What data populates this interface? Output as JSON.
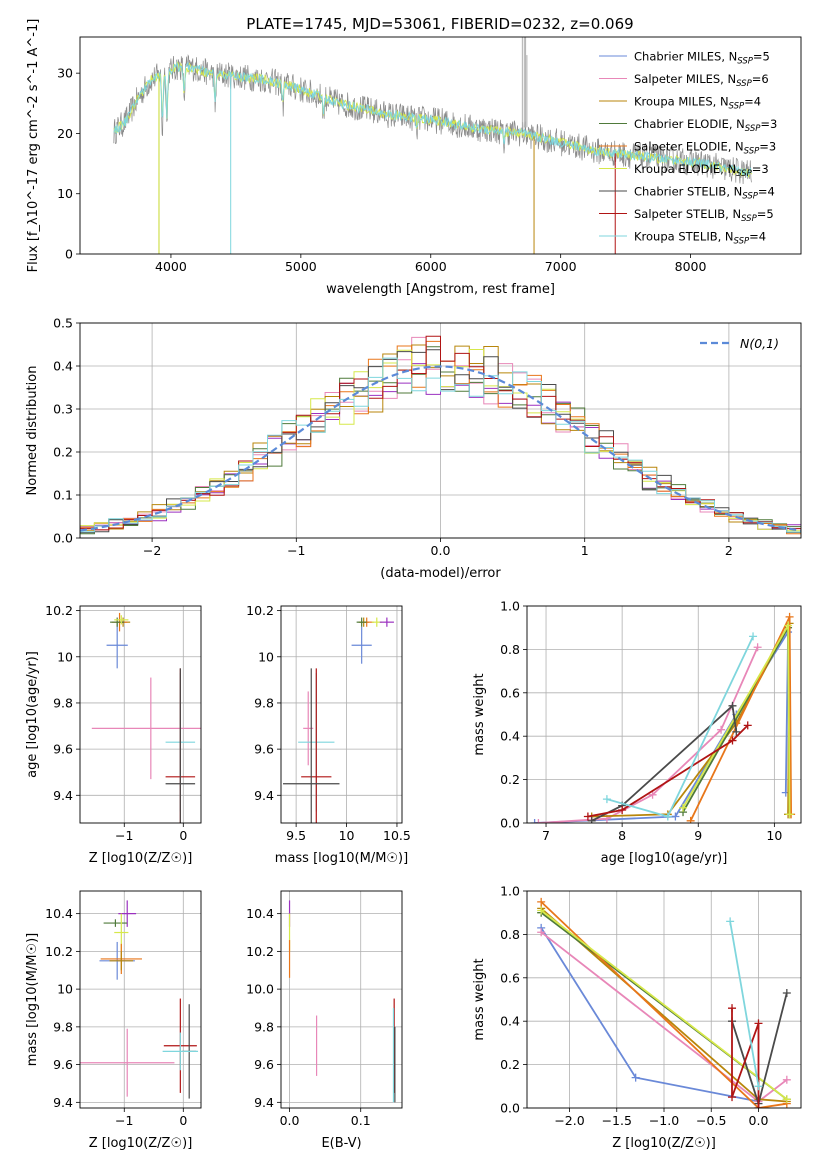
{
  "figure_title": "PLATE=1745, MJD=53061, FIBERID=0232, z=0.069",
  "colors": {
    "Chabrier MILES": "#6a89d8",
    "Salpeter MILES": "#e887b8",
    "Kroupa MILES": "#b8860b",
    "Chabrier ELODIE": "#4f7a3a",
    "Salpeter ELODIE": "#e8761a",
    "Kroupa ELODIE": "#d6e84a",
    "Chabrier STELIB": "#4a4a4a",
    "Salpeter STELIB": "#b01414",
    "Kroupa STELIB": "#7fd6dd",
    "Chabrier MILES hist": "#9b30c0"
  },
  "chart_data": [
    {
      "id": "spectrum",
      "type": "line",
      "xlabel": "wavelength [Angstrom, rest frame]",
      "ylabel": "Flux [f_λ10^-17 erg cm^-2 s^-1 A^-1]",
      "xlim": [
        3300,
        8850
      ],
      "ylim": [
        0,
        36
      ],
      "xticks": [
        4000,
        5000,
        6000,
        7000,
        8000
      ],
      "yticks": [
        0,
        10,
        20,
        30
      ],
      "grid": false,
      "legend_position": "top-right",
      "series": [
        {
          "name": "Chabrier MILES, N_SSP=5",
          "label": "Chabrier MILES, N",
          "nssp": "=5"
        },
        {
          "name": "Salpeter MILES, N_SSP=6",
          "label": "Salpeter MILES, N",
          "nssp": "=6"
        },
        {
          "name": "Kroupa MILES, N_SSP=4",
          "label": "Kroupa MILES, N",
          "nssp": "=4"
        },
        {
          "name": "Chabrier ELODIE, N_SSP=3",
          "label": "Chabrier ELODIE, N",
          "nssp": "=3"
        },
        {
          "name": "Salpeter ELODIE, N_SSP=3",
          "label": "Salpeter ELODIE, N",
          "nssp": "=3"
        },
        {
          "name": "Kroupa ELODIE, N_SSP=3",
          "label": "Kroupa ELODIE, N",
          "nssp": "=3"
        },
        {
          "name": "Chabrier STELIB, N_SSP=4",
          "label": "Chabrier STELIB, N",
          "nssp": "=4"
        },
        {
          "name": "Salpeter STELIB, N_SSP=5",
          "label": "Salpeter STELIB, N",
          "nssp": "=5"
        },
        {
          "name": "Kroupa STELIB, N_SSP=4",
          "label": "Kroupa STELIB, N",
          "nssp": "=4"
        }
      ],
      "continuum": [
        [
          3550,
          20
        ],
        [
          3650,
          22
        ],
        [
          3750,
          26
        ],
        [
          3850,
          29
        ],
        [
          3950,
          30
        ],
        [
          4050,
          31
        ],
        [
          4150,
          31
        ],
        [
          4300,
          30
        ],
        [
          4500,
          29.5
        ],
        [
          4700,
          29
        ],
        [
          4900,
          28
        ],
        [
          5100,
          26.5
        ],
        [
          5300,
          25
        ],
        [
          5500,
          24
        ],
        [
          5700,
          23
        ],
        [
          5900,
          22.5
        ],
        [
          6100,
          22
        ],
        [
          6300,
          21
        ],
        [
          6500,
          20.5
        ],
        [
          6700,
          20
        ],
        [
          6900,
          19
        ],
        [
          7100,
          18
        ],
        [
          7300,
          17
        ],
        [
          7500,
          16.5
        ],
        [
          7700,
          16
        ],
        [
          7900,
          15.5
        ],
        [
          8100,
          15
        ],
        [
          8300,
          14
        ],
        [
          8450,
          13.5
        ]
      ]
    },
    {
      "id": "residuals",
      "type": "histogram",
      "xlabel": "(data-model)/error",
      "ylabel": "Normed distribution",
      "xlim": [
        -2.5,
        2.5
      ],
      "ylim": [
        0,
        0.5
      ],
      "xticks": [
        -2,
        -1,
        0,
        1,
        2
      ],
      "yticks": [
        0.0,
        0.1,
        0.2,
        0.3,
        0.4,
        0.5
      ],
      "grid": true,
      "legend_position": "top-right",
      "reference_curve": "N(0,1)",
      "bins": 50
    },
    {
      "id": "z-age",
      "type": "errorbar",
      "xlabel": "Z [log10(Z/Z☉)]",
      "ylabel": "age [log10(age/yr)]",
      "xlim": [
        -1.75,
        0.3
      ],
      "ylim": [
        9.28,
        10.22
      ],
      "xticks": [
        -1,
        0
      ],
      "yticks": [
        9.4,
        9.6,
        9.8,
        10.0,
        10.2
      ],
      "grid": true,
      "points": [
        {
          "series": "Chabrier MILES",
          "x": -1.12,
          "xerr": 0.18,
          "y": 10.05,
          "yerr": 0.1
        },
        {
          "series": "Kroupa MILES",
          "x": -1.02,
          "xerr": 0.12,
          "y": 10.15,
          "yerr": 0.02
        },
        {
          "series": "Salpeter ELODIE",
          "x": -1.08,
          "xerr": 0.13,
          "y": 10.15,
          "yerr": 0.04
        },
        {
          "series": "Chabrier ELODIE",
          "x": -1.12,
          "xerr": 0.12,
          "y": 10.15,
          "yerr": 0.02
        },
        {
          "series": "Kroupa ELODIE",
          "x": -1.05,
          "xerr": 0.12,
          "y": 10.16,
          "yerr": 0.02
        },
        {
          "series": "Salpeter MILES",
          "x": -0.55,
          "xerr": 1.0,
          "y": 9.69,
          "yerr": 0.22
        },
        {
          "series": "Kroupa STELIB",
          "x": -0.05,
          "xerr": 0.25,
          "y": 9.63,
          "yerr": 0.3
        },
        {
          "series": "Salpeter STELIB",
          "x": -0.05,
          "xerr": 0.25,
          "y": 9.48,
          "yerr": 0.47
        },
        {
          "series": "Chabrier STELIB",
          "x": -0.05,
          "xerr": 0.25,
          "y": 9.45,
          "yerr": 0.5
        }
      ]
    },
    {
      "id": "mass-age",
      "type": "errorbar",
      "xlabel": "mass [log10(M/M☉)]",
      "ylabel": "",
      "xlim": [
        9.35,
        10.55
      ],
      "ylim": [
        9.28,
        10.22
      ],
      "xticks": [
        9.5,
        10.0,
        10.5
      ],
      "yticks": [
        9.4,
        9.6,
        9.8,
        10.0,
        10.2
      ],
      "grid": true,
      "points": [
        {
          "series": "Chabrier MILES",
          "x": 10.15,
          "xerr": 0.1,
          "y": 10.05,
          "yerr": 0.08
        },
        {
          "series": "Kroupa MILES",
          "x": 10.17,
          "xerr": 0.05,
          "y": 10.15,
          "yerr": 0.02
        },
        {
          "series": "Salpeter ELODIE",
          "x": 10.2,
          "xerr": 0.07,
          "y": 10.15,
          "yerr": 0.02
        },
        {
          "series": "Chabrier ELODIE",
          "x": 10.15,
          "xerr": 0.05,
          "y": 10.15,
          "yerr": 0.02
        },
        {
          "series": "Kroupa ELODIE",
          "x": 10.3,
          "xerr": 0.05,
          "y": 10.15,
          "yerr": 0.02
        },
        {
          "series": "Chabrier MILES hist",
          "x": 10.4,
          "xerr": 0.07,
          "y": 10.15,
          "yerr": 0.02
        },
        {
          "series": "Salpeter MILES",
          "x": 9.62,
          "xerr": 0.05,
          "y": 9.69,
          "yerr": 0.16
        },
        {
          "series": "Kroupa STELIB",
          "x": 9.7,
          "xerr": 0.18,
          "y": 9.63,
          "yerr": 0.3
        },
        {
          "series": "Salpeter STELIB",
          "x": 9.7,
          "xerr": 0.15,
          "y": 9.48,
          "yerr": 0.47
        },
        {
          "series": "Chabrier STELIB",
          "x": 9.65,
          "xerr": 0.28,
          "y": 9.45,
          "yerr": 0.5
        }
      ]
    },
    {
      "id": "age-weight",
      "type": "line",
      "xlabel": "age [log10(age/yr)]",
      "ylabel": "mass weight",
      "xlim": [
        6.75,
        10.35
      ],
      "ylim": [
        0,
        1
      ],
      "xticks": [
        7,
        8,
        9,
        10
      ],
      "yticks": [
        0.0,
        0.2,
        0.4,
        0.6,
        0.8,
        1.0
      ],
      "grid": true,
      "series": [
        {
          "series": "Chabrier MILES",
          "points": [
            [
              6.85,
              0.0
            ],
            [
              8.7,
              0.03
            ],
            [
              9.5,
              0.5
            ],
            [
              10.18,
              0.88
            ],
            [
              10.15,
              0.14
            ]
          ]
        },
        {
          "series": "Salpeter MILES",
          "points": [
            [
              6.9,
              0.0
            ],
            [
              7.8,
              0.02
            ],
            [
              8.4,
              0.13
            ],
            [
              9.3,
              0.43
            ],
            [
              9.78,
              0.81
            ]
          ]
        },
        {
          "series": "Kroupa MILES",
          "points": [
            [
              7.6,
              0.03
            ],
            [
              8.6,
              0.04
            ],
            [
              9.5,
              0.46
            ],
            [
              10.2,
              0.92
            ],
            [
              10.18,
              0.04
            ]
          ]
        },
        {
          "series": "Chabrier ELODIE",
          "points": [
            [
              8.8,
              0.05
            ],
            [
              10.18,
              0.9
            ],
            [
              10.2,
              0.04
            ]
          ]
        },
        {
          "series": "Salpeter ELODIE",
          "points": [
            [
              8.9,
              0.01
            ],
            [
              10.2,
              0.95
            ],
            [
              10.22,
              0.04
            ]
          ]
        },
        {
          "series": "Kroupa ELODIE",
          "points": [
            [
              8.8,
              0.07
            ],
            [
              10.18,
              0.91
            ],
            [
              10.2,
              0.04
            ]
          ]
        },
        {
          "series": "Chabrier STELIB",
          "points": [
            [
              7.6,
              0.01
            ],
            [
              8.0,
              0.08
            ],
            [
              9.45,
              0.54
            ],
            [
              9.5,
              0.42
            ]
          ]
        },
        {
          "series": "Salpeter STELIB",
          "points": [
            [
              7.55,
              0.03
            ],
            [
              8.0,
              0.06
            ],
            [
              9.45,
              0.38
            ],
            [
              9.65,
              0.45
            ]
          ]
        },
        {
          "series": "Kroupa STELIB",
          "points": [
            [
              7.8,
              0.11
            ],
            [
              8.6,
              0.03
            ],
            [
              9.72,
              0.86
            ]
          ]
        }
      ]
    },
    {
      "id": "z-mass",
      "type": "errorbar",
      "xlabel": "Z [log10(Z/Z☉)]",
      "ylabel": "mass [log10(M/M☉)]",
      "xlim": [
        -1.75,
        0.3
      ],
      "ylim": [
        9.37,
        10.52
      ],
      "xticks": [
        -1,
        0
      ],
      "yticks": [
        9.4,
        9.6,
        9.8,
        10.0,
        10.2,
        10.4
      ],
      "grid": true,
      "points": [
        {
          "series": "Chabrier MILES hist",
          "x": -0.95,
          "xerr": 0.15,
          "y": 10.4,
          "yerr": 0.07
        },
        {
          "series": "Chabrier ELODIE",
          "x": -1.15,
          "xerr": 0.2,
          "y": 10.35,
          "yerr": 0.02
        },
        {
          "series": "Kroupa ELODIE",
          "x": -1.05,
          "xerr": 0.12,
          "y": 10.3,
          "yerr": 0.1
        },
        {
          "series": "Chabrier MILES",
          "x": -1.12,
          "xerr": 0.3,
          "y": 10.15,
          "yerr": 0.1
        },
        {
          "series": "Salpeter ELODIE",
          "x": -1.05,
          "xerr": 0.35,
          "y": 10.16,
          "yerr": 0.08
        },
        {
          "series": "Kroupa MILES",
          "x": -1.05,
          "xerr": 0.2,
          "y": 10.15,
          "yerr": 0.05
        },
        {
          "series": "Salpeter STELIB",
          "x": -0.05,
          "xerr": 0.28,
          "y": 9.7,
          "yerr": 0.25
        },
        {
          "series": "Chabrier STELIB",
          "x": 0.1,
          "xerr": 0.12,
          "y": 9.67,
          "yerr": 0.25
        },
        {
          "series": "Kroupa STELIB",
          "x": -0.05,
          "xerr": 0.3,
          "y": 9.67,
          "yerr": 0.1
        },
        {
          "series": "Salpeter MILES",
          "x": -0.95,
          "xerr": 0.8,
          "y": 9.61,
          "yerr": 0.18
        }
      ]
    },
    {
      "id": "ebv-mass",
      "type": "errorbar",
      "xlabel": "E(B-V)",
      "ylabel": "",
      "xlim": [
        -0.012,
        0.158
      ],
      "ylim": [
        9.37,
        10.52
      ],
      "xticks": [
        0.0,
        0.1
      ],
      "yticks": [
        9.4,
        9.6,
        9.8,
        10.0,
        10.2,
        10.4
      ],
      "grid": true,
      "points": [
        {
          "series": "Chabrier MILES hist",
          "x": 0.0,
          "xerr": 0,
          "y": 10.4,
          "yerr": 0.07
        },
        {
          "series": "Kroupa ELODIE",
          "x": 0.0,
          "xerr": 0,
          "y": 10.3,
          "yerr": 0.1
        },
        {
          "series": "Salpeter ELODIE",
          "x": 0.0,
          "xerr": 0,
          "y": 10.16,
          "yerr": 0.1
        },
        {
          "series": "Salpeter MILES",
          "x": 0.038,
          "xerr": 0,
          "y": 9.7,
          "yerr": 0.16
        },
        {
          "series": "Salpeter STELIB",
          "x": 0.147,
          "xerr": 0,
          "y": 9.7,
          "yerr": 0.25
        },
        {
          "series": "Kroupa STELIB",
          "x": 0.146,
          "xerr": 0,
          "y": 9.65,
          "yerr": 0.25
        },
        {
          "series": "Chabrier STELIB",
          "x": 0.148,
          "xerr": 0,
          "y": 9.6,
          "yerr": 0.2
        }
      ]
    },
    {
      "id": "z-weight",
      "type": "line",
      "xlabel": "Z [log10(Z/Z☉)]",
      "ylabel": "mass weight",
      "xlim": [
        -2.45,
        0.45
      ],
      "ylim": [
        0,
        1
      ],
      "xticks": [
        -2.0,
        -1.5,
        -1.0,
        -0.5,
        0.0
      ],
      "yticks": [
        0.0,
        0.2,
        0.4,
        0.6,
        0.8,
        1.0
      ],
      "grid": true,
      "series": [
        {
          "series": "Chabrier MILES",
          "points": [
            [
              -2.3,
              0.83
            ],
            [
              -1.3,
              0.14
            ],
            [
              0.0,
              0.03
            ]
          ]
        },
        {
          "series": "Salpeter MILES",
          "points": [
            [
              -2.3,
              0.81
            ],
            [
              0.0,
              0.03
            ],
            [
              0.3,
              0.13
            ]
          ]
        },
        {
          "series": "Kroupa MILES",
          "points": [
            [
              -2.3,
              0.92
            ],
            [
              0.0,
              0.04
            ],
            [
              0.3,
              0.03
            ]
          ]
        },
        {
          "series": "Chabrier ELODIE",
          "points": [
            [
              -2.3,
              0.9
            ],
            [
              0.3,
              0.04
            ]
          ]
        },
        {
          "series": "Salpeter ELODIE",
          "points": [
            [
              -2.3,
              0.95
            ],
            [
              0.0,
              0.0
            ],
            [
              0.3,
              0.02
            ]
          ]
        },
        {
          "series": "Kroupa ELODIE",
          "points": [
            [
              -2.3,
              0.91
            ],
            [
              0.3,
              0.04
            ]
          ]
        },
        {
          "series": "Chabrier STELIB",
          "points": [
            [
              -0.28,
              0.4
            ],
            [
              0.0,
              0.02
            ],
            [
              0.3,
              0.53
            ]
          ]
        },
        {
          "series": "Salpeter STELIB",
          "points": [
            [
              -0.28,
              0.46
            ],
            [
              -0.28,
              0.05
            ],
            [
              0.0,
              0.39
            ],
            [
              0.0,
              0.0
            ]
          ]
        },
        {
          "series": "Kroupa STELIB",
          "points": [
            [
              -0.3,
              0.86
            ],
            [
              0.0,
              0.1
            ]
          ]
        }
      ]
    }
  ]
}
